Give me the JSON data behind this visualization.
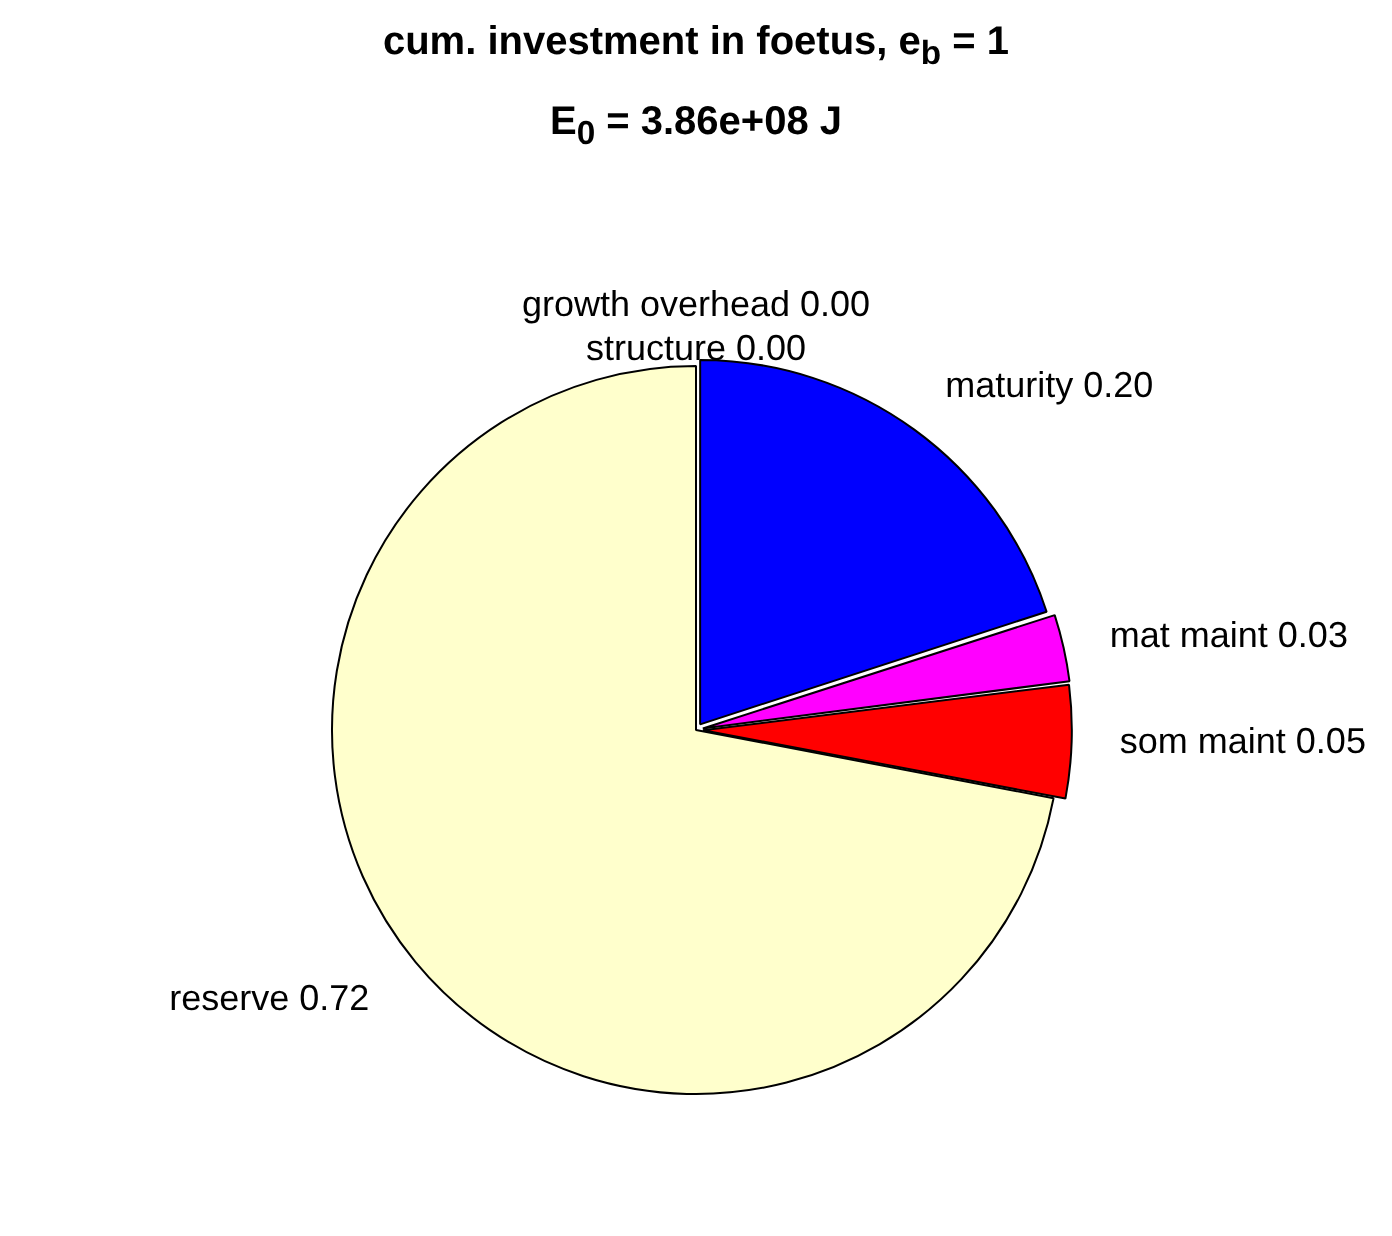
{
  "chart_data": {
    "type": "pie",
    "title": "cum. investment in foetus, e$_{b}$ = 1",
    "subtitle": "E$_{0}$ = 3.86e+08 J",
    "categories": [
      "growth overhead",
      "structure",
      "maturity",
      "mat maint",
      "som maint",
      "reserve"
    ],
    "values": [
      0,
      0,
      0.2,
      0.03,
      0.05,
      0.72
    ],
    "value_labels": [
      "0.00",
      "0.00",
      "0.20",
      "0.03",
      "0.05",
      "0.72"
    ],
    "colors": [
      "#00ff00",
      "#00ffff",
      "#0000ff",
      "#ff00ff",
      "#ff0000",
      "#ffffcc"
    ],
    "legend": false
  }
}
